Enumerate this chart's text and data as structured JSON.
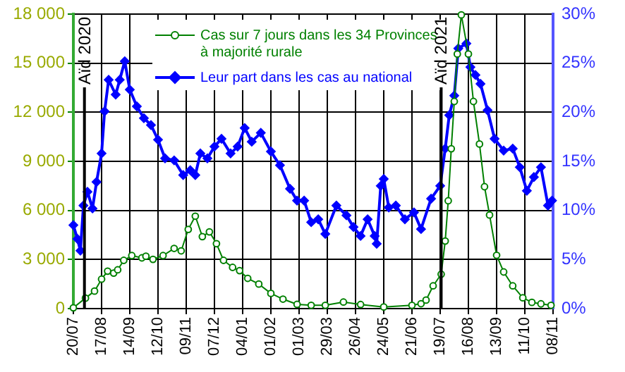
{
  "chart_data": {
    "type": "line",
    "xlim": [
      "2020-07-20",
      "2021-11-08"
    ],
    "xticks": [
      {
        "value": "2020-07-20",
        "label": "20/07"
      },
      {
        "value": "2020-08-17",
        "label": "17/08"
      },
      {
        "value": "2020-09-14",
        "label": "14/09"
      },
      {
        "value": "2020-10-12",
        "label": "12/10"
      },
      {
        "value": "2020-11-09",
        "label": "09/11"
      },
      {
        "value": "2020-12-07",
        "label": "07/12"
      },
      {
        "value": "2021-01-04",
        "label": "04/01"
      },
      {
        "value": "2021-02-01",
        "label": "01/02"
      },
      {
        "value": "2021-03-01",
        "label": "01/03"
      },
      {
        "value": "2021-03-29",
        "label": "29/03"
      },
      {
        "value": "2021-04-26",
        "label": "26/04"
      },
      {
        "value": "2021-05-24",
        "label": "24/05"
      },
      {
        "value": "2021-06-21",
        "label": "21/06"
      },
      {
        "value": "2021-07-19",
        "label": "19/07"
      },
      {
        "value": "2021-08-16",
        "label": "16/08"
      },
      {
        "value": "2021-09-13",
        "label": "13/09"
      },
      {
        "value": "2021-10-11",
        "label": "11/10"
      },
      {
        "value": "2021-11-08",
        "label": "08/11"
      }
    ],
    "ylim": [
      0,
      18000
    ],
    "yticks": [
      0,
      {
        "value": 3000,
        "label": "3 000"
      },
      {
        "value": 6000,
        "label": "6 000"
      },
      {
        "value": 9000,
        "label": "9 000"
      },
      {
        "value": 12000,
        "label": "12 000"
      },
      {
        "value": 15000,
        "label": "15 000"
      },
      {
        "value": 18000,
        "label": "18 000"
      }
    ],
    "y2lim": [
      0,
      30
    ],
    "y2ticks": [
      {
        "value": 0,
        "label": "0%"
      },
      {
        "value": 5,
        "label": "5%"
      },
      {
        "value": 10,
        "label": "10%"
      },
      {
        "value": 15,
        "label": "15%"
      },
      {
        "value": 20,
        "label": "20%"
      },
      {
        "value": 25,
        "label": "25%"
      },
      {
        "value": 30,
        "label": "30%"
      }
    ],
    "grid": true,
    "legend": "top",
    "line_style": "solid",
    "ref_lines": [
      {
        "axis": "x",
        "value": "2020-07-31",
        "label": "Aïd 2020",
        "color": "#000000"
      },
      {
        "axis": "x",
        "value": "2021-07-20",
        "label": "Aïd 2021",
        "color": "#000000"
      }
    ],
    "series": [
      {
        "name": "Cas sur 7 jours dans les 34 Provinces à majorité rurale",
        "color": "#008000",
        "marker": "circle",
        "x": [
          "2020-07-20",
          "2020-08-01",
          "2020-08-10",
          "2020-08-17",
          "2020-08-23",
          "2020-08-29",
          "2020-09-02",
          "2020-09-08",
          "2020-09-16",
          "2020-09-26",
          "2020-09-30",
          "2020-10-07",
          "2020-10-17",
          "2020-10-28",
          "2020-11-04",
          "2020-11-11",
          "2020-11-18",
          "2020-11-25",
          "2020-12-02",
          "2020-12-09",
          "2020-12-16",
          "2020-12-25",
          "2021-01-01",
          "2021-01-09",
          "2021-01-20",
          "2021-02-01",
          "2021-02-13",
          "2021-02-27",
          "2021-03-13",
          "2021-03-27",
          "2021-04-14",
          "2021-05-01",
          "2021-05-24",
          "2021-06-21",
          "2021-06-30",
          "2021-07-05",
          "2021-07-12",
          "2021-07-20",
          "2021-07-24",
          "2021-07-27",
          "2021-07-30",
          "2021-08-02",
          "2021-08-05",
          "2021-08-09",
          "2021-08-16",
          "2021-08-21",
          "2021-08-27",
          "2021-09-01",
          "2021-09-06",
          "2021-09-13",
          "2021-09-20",
          "2021-09-29",
          "2021-10-09",
          "2021-10-18",
          "2021-10-27",
          "2021-11-06"
        ],
        "values": [
          50,
          640,
          1070,
          1800,
          2290,
          2170,
          2370,
          2950,
          3240,
          3100,
          3200,
          3010,
          3240,
          3680,
          3530,
          4840,
          5650,
          4400,
          4690,
          3970,
          2950,
          2520,
          2320,
          1850,
          1500,
          930,
          580,
          260,
          200,
          200,
          400,
          250,
          100,
          200,
          300,
          520,
          1390,
          2100,
          4130,
          6590,
          9770,
          12660,
          15560,
          17950,
          15560,
          12660,
          10060,
          7450,
          5720,
          3260,
          2240,
          1390,
          660,
          380,
          290,
          200
        ]
      },
      {
        "name": "Leur part dans les cas au national",
        "color": "#0000ff",
        "marker": "diamond",
        "axis": "y2",
        "x": [
          "2020-07-20",
          "2020-07-24",
          "2020-07-27",
          "2020-07-30",
          "2020-08-03",
          "2020-08-08",
          "2020-08-12",
          "2020-08-17",
          "2020-08-20",
          "2020-08-24",
          "2020-08-31",
          "2020-09-04",
          "2020-09-09",
          "2020-09-14",
          "2020-09-21",
          "2020-09-28",
          "2020-10-05",
          "2020-10-12",
          "2020-10-19",
          "2020-10-28",
          "2020-11-06",
          "2020-11-13",
          "2020-11-18",
          "2020-11-23",
          "2020-11-30",
          "2020-12-07",
          "2020-12-14",
          "2020-12-23",
          "2020-12-30",
          "2021-01-06",
          "2021-01-13",
          "2021-01-22",
          "2021-02-01",
          "2021-02-10",
          "2021-02-20",
          "2021-02-27",
          "2021-03-06",
          "2021-03-13",
          "2021-03-20",
          "2021-03-27",
          "2021-04-07",
          "2021-04-17",
          "2021-04-24",
          "2021-05-01",
          "2021-05-08",
          "2021-05-15",
          "2021-05-17",
          "2021-05-21",
          "2021-05-24",
          "2021-05-29",
          "2021-06-05",
          "2021-06-14",
          "2021-06-23",
          "2021-06-30",
          "2021-07-10",
          "2021-07-19",
          "2021-07-24",
          "2021-07-28",
          "2021-08-02",
          "2021-08-06",
          "2021-08-14",
          "2021-08-18",
          "2021-08-23",
          "2021-08-28",
          "2021-09-04",
          "2021-09-11",
          "2021-09-20",
          "2021-09-29",
          "2021-10-06",
          "2021-10-13",
          "2021-10-20",
          "2021-10-27",
          "2021-11-03",
          "2021-11-07"
        ],
        "values": [
          8.5,
          7.1,
          5.9,
          10.5,
          11.9,
          10.2,
          12.9,
          15.8,
          20.1,
          23.3,
          21.8,
          23.3,
          25.2,
          22.3,
          20.6,
          19.4,
          18.7,
          17.2,
          15.3,
          15.1,
          13.6,
          14.1,
          13.6,
          15.8,
          15.3,
          16.5,
          17.3,
          15.8,
          16.5,
          18.4,
          17.0,
          17.9,
          16.0,
          14.6,
          12.2,
          11.0,
          11.0,
          8.8,
          9.1,
          7.6,
          10.5,
          9.5,
          8.3,
          7.4,
          9.1,
          7.4,
          6.6,
          12.5,
          13.2,
          10.3,
          10.5,
          9.1,
          9.8,
          8.1,
          11.2,
          12.5,
          16.3,
          19.7,
          21.7,
          26.5,
          27.0,
          24.6,
          23.8,
          22.9,
          20.2,
          17.3,
          16.1,
          16.3,
          14.4,
          12.0,
          13.4,
          14.4,
          10.5,
          11.0
        ]
      }
    ]
  }
}
